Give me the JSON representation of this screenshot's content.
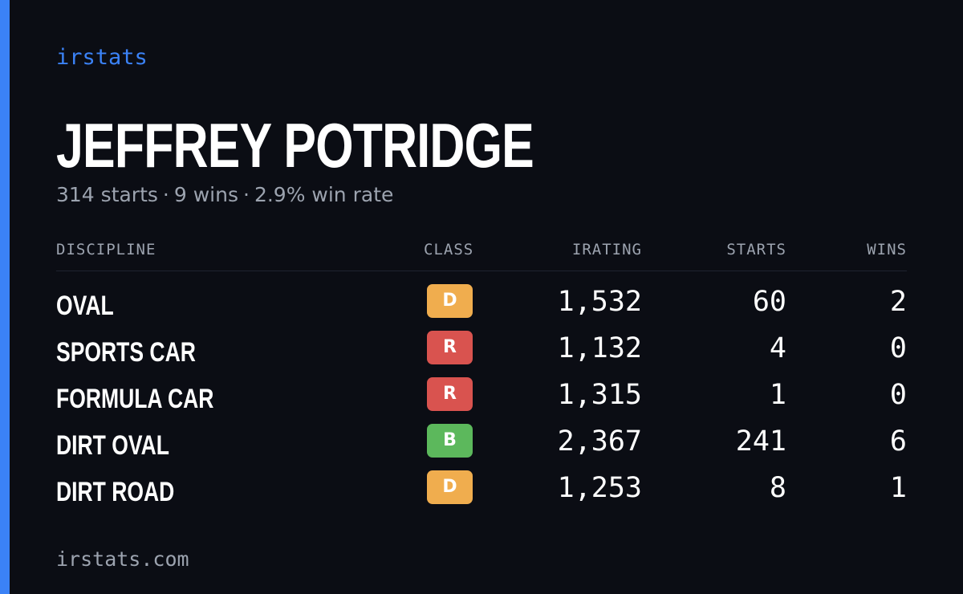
{
  "brand": "irstats",
  "player": {
    "name": "JEFFREY POTRIDGE",
    "starts_text": "314 starts",
    "wins_text": "9 wins",
    "win_rate_text": "2.9% win rate",
    "separator": "·"
  },
  "table": {
    "headers": {
      "discipline": "DISCIPLINE",
      "class": "CLASS",
      "irating": "IRATING",
      "starts": "STARTS",
      "wins": "WINS"
    },
    "rows": [
      {
        "discipline": "OVAL",
        "class": "D",
        "class_color": "#f0ad4e",
        "irating": "1,532",
        "starts": "60",
        "wins": "2"
      },
      {
        "discipline": "SPORTS CAR",
        "class": "R",
        "class_color": "#d9534f",
        "irating": "1,132",
        "starts": "4",
        "wins": "0"
      },
      {
        "discipline": "FORMULA CAR",
        "class": "R",
        "class_color": "#d9534f",
        "irating": "1,315",
        "starts": "1",
        "wins": "0"
      },
      {
        "discipline": "DIRT OVAL",
        "class": "B",
        "class_color": "#5cb85c",
        "irating": "2,367",
        "starts": "241",
        "wins": "6"
      },
      {
        "discipline": "DIRT ROAD",
        "class": "D",
        "class_color": "#f0ad4e",
        "irating": "1,253",
        "starts": "8",
        "wins": "1"
      }
    ]
  },
  "footer": "irstats.com",
  "colors": {
    "background": "#0b0d14",
    "accent": "#3b82f6",
    "muted_text": "#9ca3af"
  }
}
